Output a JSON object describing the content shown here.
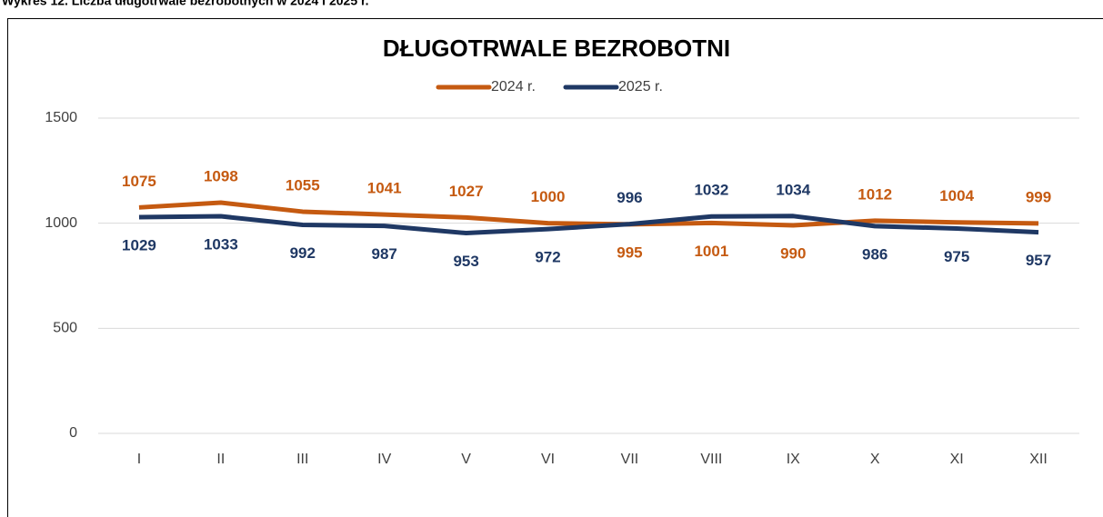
{
  "caption": "Wykres 12. Liczba długotrwale bezrobotnych w 2024 i 2025 r.",
  "chart_data": {
    "type": "line",
    "title": "DŁUGOTRWALE BEZROBOTNI",
    "categories": [
      "I",
      "II",
      "III",
      "IV",
      "V",
      "VI",
      "VII",
      "VIII",
      "IX",
      "X",
      "XI",
      "XII"
    ],
    "series": [
      {
        "name": "2024 r.",
        "color": "#c55a11",
        "values": [
          1075,
          1098,
          1055,
          1041,
          1027,
          1000,
          995,
          1001,
          990,
          1012,
          1004,
          999
        ]
      },
      {
        "name": "2025 r.",
        "color": "#1f3864",
        "values": [
          1029,
          1033,
          992,
          987,
          953,
          972,
          996,
          1032,
          1034,
          986,
          975,
          957
        ]
      }
    ],
    "ylim": [
      0,
      1500
    ],
    "yticks": [
      0,
      500,
      1000,
      1500
    ],
    "grid": true
  }
}
